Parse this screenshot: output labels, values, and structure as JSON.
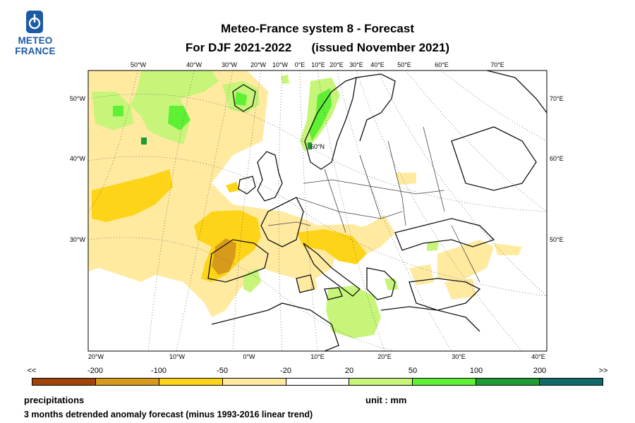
{
  "logo": {
    "line1": "METEO",
    "line2": "FRANCE",
    "brand_color": "#1d5aa6"
  },
  "title": {
    "line1": "Meteo-France system 8  -  Forecast",
    "line2": "For DJF 2021-2022      (issued November 2021)"
  },
  "map": {
    "top_labels": [
      "50°W",
      "40°W",
      "30°W",
      "20°W",
      "10°W",
      "0°E",
      "10°E",
      "20°E",
      "30°E",
      "40°E",
      "50°E",
      "60°E",
      "70°E"
    ],
    "left_labels": [
      "50°W",
      "40°W",
      "30°W"
    ],
    "right_labels": [
      "70°E",
      "60°E",
      "50°E"
    ],
    "bottom_labels": [
      "20°W",
      "10°W",
      "0°W",
      "10°E",
      "20°E",
      "30°E",
      "40°E"
    ],
    "inner_label": "60°N"
  },
  "legend": {
    "labels": [
      "<<",
      "-200",
      "-100",
      "-50",
      "-20",
      "20",
      "50",
      "100",
      "200",
      ">>"
    ],
    "colors": [
      "#a0440a",
      "#d89a1a",
      "#fdd417",
      "#ffeaa0",
      "#ffffff",
      "#c6f57a",
      "#5ef035",
      "#1f9b33",
      "#126a68"
    ]
  },
  "footer": {
    "variable": "precipitations",
    "unit": "unit : mm",
    "description": "3 months detrended anomaly forecast (minus 1993-2016 linear trend)"
  }
}
